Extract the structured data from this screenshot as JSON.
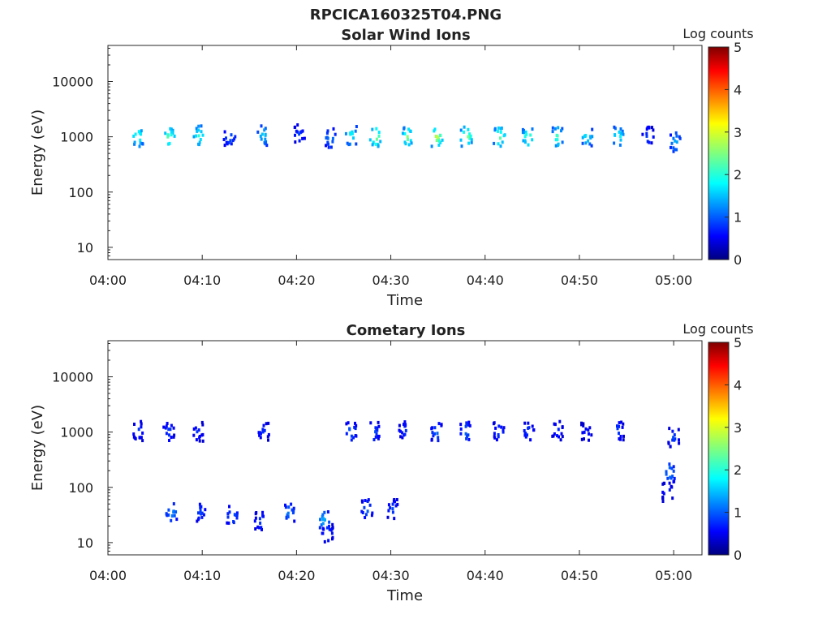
{
  "figure_title": "RPCICA160325T04.PNG",
  "chart_data": [
    {
      "type": "heatmap",
      "title": "Solar Wind Ions",
      "xlabel": "Time",
      "ylabel": "Energy (eV)",
      "x_ticks": [
        "04:00",
        "04:10",
        "04:20",
        "04:30",
        "04:40",
        "04:50",
        "05:00"
      ],
      "y_ticks": [
        "10",
        "100",
        "1000",
        "10000"
      ],
      "y_scale": "log",
      "ylim": [
        6,
        45000
      ],
      "xlim_minutes": [
        0,
        63
      ],
      "colorbar": {
        "label": "Log counts",
        "range": [
          0,
          5
        ],
        "ticks": [
          "0",
          "1",
          "2",
          "3",
          "4",
          "5"
        ],
        "colormap": "jet"
      },
      "blobs": [
        {
          "t": 3.2,
          "e": 1000,
          "lc": 2.4
        },
        {
          "t": 6.5,
          "e": 1000,
          "lc": 2.5
        },
        {
          "t": 9.7,
          "e": 1050,
          "lc": 2.2
        },
        {
          "t": 12.9,
          "e": 1000,
          "lc": 1.2
        },
        {
          "t": 16.5,
          "e": 1050,
          "lc": 1.8
        },
        {
          "t": 20.3,
          "e": 1100,
          "lc": 1.0
        },
        {
          "t": 23.6,
          "e": 950,
          "lc": 1.4
        },
        {
          "t": 25.8,
          "e": 1050,
          "lc": 2.1
        },
        {
          "t": 28.4,
          "e": 1000,
          "lc": 2.8
        },
        {
          "t": 31.8,
          "e": 1000,
          "lc": 2.6
        },
        {
          "t": 34.9,
          "e": 1000,
          "lc": 2.9
        },
        {
          "t": 38.0,
          "e": 1000,
          "lc": 2.8
        },
        {
          "t": 41.5,
          "e": 1000,
          "lc": 2.6
        },
        {
          "t": 44.6,
          "e": 1000,
          "lc": 2.5
        },
        {
          "t": 47.7,
          "e": 1000,
          "lc": 2.3
        },
        {
          "t": 50.8,
          "e": 1000,
          "lc": 2.0
        },
        {
          "t": 54.1,
          "e": 1000,
          "lc": 2.2
        },
        {
          "t": 57.3,
          "e": 1000,
          "lc": 1.0
        },
        {
          "t": 60.2,
          "e": 800,
          "lc": 1.6
        }
      ]
    },
    {
      "type": "heatmap",
      "title": "Cometary Ions",
      "xlabel": "Time",
      "ylabel": "Energy (eV)",
      "x_ticks": [
        "04:00",
        "04:10",
        "04:20",
        "04:30",
        "04:40",
        "04:50",
        "05:00"
      ],
      "y_ticks": [
        "10",
        "100",
        "1000",
        "10000"
      ],
      "y_scale": "log",
      "ylim": [
        6,
        45000
      ],
      "xlim_minutes": [
        0,
        63
      ],
      "colorbar": {
        "label": "Log counts",
        "range": [
          0,
          5
        ],
        "ticks": [
          "0",
          "1",
          "2",
          "3",
          "4",
          "5"
        ],
        "colormap": "jet"
      },
      "blobs": [
        {
          "t": 3.2,
          "e": 1050,
          "lc": 1.0
        },
        {
          "t": 6.5,
          "e": 1050,
          "lc": 1.0
        },
        {
          "t": 9.5,
          "e": 1000,
          "lc": 0.9
        },
        {
          "t": 16.5,
          "e": 1000,
          "lc": 0.9
        },
        {
          "t": 25.8,
          "e": 1050,
          "lc": 1.2
        },
        {
          "t": 28.2,
          "e": 1000,
          "lc": 1.1
        },
        {
          "t": 31.5,
          "e": 1050,
          "lc": 0.9
        },
        {
          "t": 34.9,
          "e": 1000,
          "lc": 1.2
        },
        {
          "t": 38.0,
          "e": 1000,
          "lc": 1.2
        },
        {
          "t": 41.5,
          "e": 1000,
          "lc": 1.0
        },
        {
          "t": 44.6,
          "e": 1000,
          "lc": 1.0
        },
        {
          "t": 47.7,
          "e": 1050,
          "lc": 0.9
        },
        {
          "t": 50.8,
          "e": 1000,
          "lc": 0.8
        },
        {
          "t": 54.1,
          "e": 1050,
          "lc": 1.0
        },
        {
          "t": 60.0,
          "e": 800,
          "lc": 1.0
        },
        {
          "t": 6.8,
          "e": 35,
          "lc": 1.4
        },
        {
          "t": 9.8,
          "e": 35,
          "lc": 1.0
        },
        {
          "t": 13.2,
          "e": 30,
          "lc": 1.2
        },
        {
          "t": 16.2,
          "e": 25,
          "lc": 1.0
        },
        {
          "t": 19.2,
          "e": 35,
          "lc": 1.3
        },
        {
          "t": 22.9,
          "e": 25,
          "lc": 1.6
        },
        {
          "t": 23.3,
          "e": 15,
          "lc": 1.0
        },
        {
          "t": 27.5,
          "e": 40,
          "lc": 1.2
        },
        {
          "t": 30.2,
          "e": 40,
          "lc": 1.0
        },
        {
          "t": 59.6,
          "e": 180,
          "lc": 1.4
        },
        {
          "t": 59.4,
          "e": 80,
          "lc": 0.9
        }
      ]
    }
  ]
}
